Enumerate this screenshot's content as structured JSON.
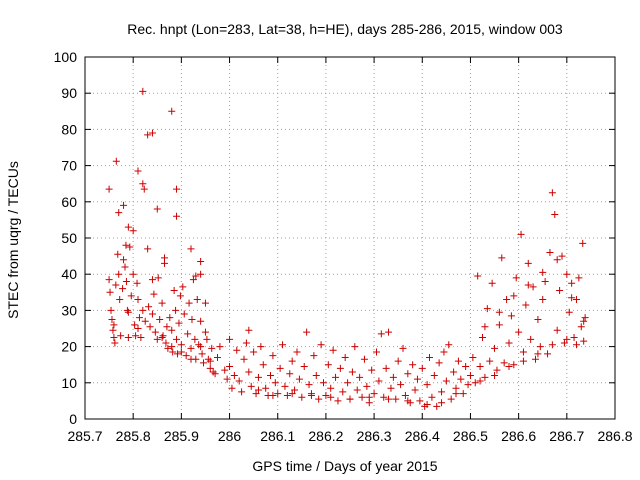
{
  "chart_data": {
    "type": "scatter",
    "title": "Rec. hnpt (Lon=283, Lat=38, h=HE), days 285-286, 2015, window 003",
    "xlabel": "GPS time / Days of year 2015",
    "ylabel": "STEC from uqrg / TECUs",
    "xlim": [
      285.7,
      286.8
    ],
    "ylim": [
      0,
      100
    ],
    "xticks": [
      "285.7",
      "285.8",
      "285.9",
      "286",
      "286.1",
      "286.2",
      "286.3",
      "286.4",
      "286.5",
      "286.6",
      "286.7",
      "286.8"
    ],
    "xtick_values": [
      285.7,
      285.8,
      285.9,
      286.0,
      286.1,
      286.2,
      286.3,
      286.4,
      286.5,
      286.6,
      286.7,
      286.8
    ],
    "yticks": [
      "0",
      "10",
      "20",
      "30",
      "40",
      "50",
      "60",
      "70",
      "80",
      "90",
      "100"
    ],
    "ytick_values": [
      0,
      10,
      20,
      30,
      40,
      50,
      60,
      70,
      80,
      90,
      100
    ],
    "grid": true,
    "marker": "+",
    "marker_color": "#cc0000",
    "series": [
      {
        "points": [
          [
            285.75,
            63.5
          ],
          [
            285.765,
            71.2
          ],
          [
            285.77,
            57.0
          ],
          [
            285.78,
            59.0
          ],
          [
            285.785,
            48.0
          ],
          [
            285.79,
            53.0
          ],
          [
            285.8,
            52.0
          ],
          [
            285.81,
            68.5
          ],
          [
            285.82,
            90.5
          ],
          [
            285.82,
            65.0
          ],
          [
            285.823,
            63.5
          ],
          [
            285.83,
            78.5
          ],
          [
            285.84,
            79.0
          ],
          [
            285.85,
            58.0
          ],
          [
            285.865,
            44.5
          ],
          [
            285.865,
            43.0
          ],
          [
            285.88,
            85.0
          ],
          [
            285.89,
            63.5
          ],
          [
            285.89,
            56.0
          ],
          [
            285.92,
            47.0
          ],
          [
            285.94,
            43.5
          ],
          [
            285.93,
            39.5
          ],
          [
            285.94,
            40.0
          ],
          [
            285.95,
            32.0
          ],
          [
            285.75,
            38.5
          ],
          [
            285.752,
            35.0
          ],
          [
            285.754,
            30.0
          ],
          [
            285.756,
            27.5
          ],
          [
            285.758,
            24.5
          ],
          [
            285.76,
            22.5
          ],
          [
            285.762,
            21.0
          ],
          [
            285.764,
            37.0
          ],
          [
            285.768,
            45.5
          ],
          [
            285.77,
            40.0
          ],
          [
            285.772,
            33.0
          ],
          [
            285.774,
            23.0
          ],
          [
            285.778,
            36.0
          ],
          [
            285.78,
            44.0
          ],
          [
            285.783,
            42.0
          ],
          [
            285.786,
            38.0
          ],
          [
            285.788,
            30.0
          ],
          [
            285.79,
            22.5
          ],
          [
            285.793,
            47.5
          ],
          [
            285.796,
            34.0
          ],
          [
            285.8,
            40.0
          ],
          [
            285.803,
            26.0
          ],
          [
            285.805,
            23.0
          ],
          [
            285.808,
            37.5
          ],
          [
            285.81,
            33.0
          ],
          [
            285.813,
            28.0
          ],
          [
            285.816,
            22.5
          ],
          [
            285.82,
            30.0
          ],
          [
            285.825,
            27.0
          ],
          [
            285.83,
            47.0
          ],
          [
            285.832,
            31.0
          ],
          [
            285.835,
            25.5
          ],
          [
            285.84,
            38.5
          ],
          [
            285.843,
            34.5
          ],
          [
            285.846,
            24.0
          ],
          [
            285.85,
            22.0
          ],
          [
            285.852,
            39.0
          ],
          [
            285.855,
            27.5
          ],
          [
            285.86,
            32.0
          ],
          [
            285.862,
            23.0
          ],
          [
            285.868,
            21.0
          ],
          [
            285.87,
            25.5
          ],
          [
            285.872,
            19.5
          ],
          [
            285.876,
            28.0
          ],
          [
            285.88,
            24.5
          ],
          [
            285.882,
            18.5
          ],
          [
            285.885,
            35.5
          ],
          [
            285.888,
            30.0
          ],
          [
            285.89,
            22.0
          ],
          [
            285.892,
            18.0
          ],
          [
            285.895,
            26.5
          ],
          [
            285.898,
            34.0
          ],
          [
            285.9,
            20.5
          ],
          [
            285.903,
            36.5
          ],
          [
            285.906,
            29.0
          ],
          [
            285.91,
            17.5
          ],
          [
            285.913,
            23.5
          ],
          [
            285.916,
            32.0
          ],
          [
            285.92,
            19.5
          ],
          [
            285.922,
            27.5
          ],
          [
            285.925,
            38.5
          ],
          [
            285.928,
            22.0
          ],
          [
            285.93,
            16.5
          ],
          [
            285.933,
            33.0
          ],
          [
            285.936,
            20.5
          ],
          [
            285.94,
            27.0
          ],
          [
            285.943,
            18.0
          ],
          [
            285.946,
            15.5
          ],
          [
            285.95,
            24.0
          ],
          [
            285.953,
            22.0
          ],
          [
            285.956,
            16.5
          ],
          [
            285.96,
            14.0
          ],
          [
            285.963,
            19.5
          ],
          [
            285.966,
            13.0
          ],
          [
            285.97,
            12.5
          ],
          [
            285.975,
            17.0
          ],
          [
            285.98,
            20.0
          ],
          [
            285.76,
            26.0
          ],
          [
            285.79,
            29.5
          ],
          [
            285.81,
            25.0
          ],
          [
            285.84,
            29.0
          ],
          [
            285.86,
            22.5
          ],
          [
            285.88,
            20.0
          ],
          [
            285.9,
            18.5
          ],
          [
            285.92,
            16.5
          ],
          [
            285.94,
            20.0
          ],
          [
            285.96,
            16.0
          ],
          [
            285.99,
            13.5
          ],
          [
            285.995,
            11.0
          ],
          [
            286.0,
            22.0
          ],
          [
            286.0,
            14.5
          ],
          [
            286.005,
            8.5
          ],
          [
            286.01,
            12.0
          ],
          [
            286.015,
            19.0
          ],
          [
            286.02,
            10.5
          ],
          [
            286.025,
            7.5
          ],
          [
            286.03,
            16.5
          ],
          [
            286.035,
            21.0
          ],
          [
            286.04,
            24.5
          ],
          [
            286.04,
            13.0
          ],
          [
            286.045,
            9.0
          ],
          [
            286.05,
            18.5
          ],
          [
            286.055,
            7.0
          ],
          [
            286.06,
            11.5
          ],
          [
            286.065,
            20.0
          ],
          [
            286.07,
            15.0
          ],
          [
            286.075,
            8.5
          ],
          [
            286.08,
            6.5
          ],
          [
            286.085,
            12.0
          ],
          [
            286.09,
            17.5
          ],
          [
            286.095,
            10.0
          ],
          [
            286.1,
            7.0
          ],
          [
            286.105,
            14.0
          ],
          [
            286.11,
            20.5
          ],
          [
            286.115,
            9.0
          ],
          [
            286.12,
            6.5
          ],
          [
            286.125,
            12.5
          ],
          [
            286.13,
            16.0
          ],
          [
            286.135,
            8.0
          ],
          [
            286.14,
            18.5
          ],
          [
            286.145,
            11.0
          ],
          [
            286.15,
            6.0
          ],
          [
            286.155,
            14.5
          ],
          [
            286.16,
            24.0
          ],
          [
            286.165,
            9.5
          ],
          [
            286.17,
            7.0
          ],
          [
            286.175,
            17.5
          ],
          [
            286.18,
            12.0
          ],
          [
            286.185,
            5.5
          ],
          [
            286.19,
            20.5
          ],
          [
            286.195,
            10.0
          ],
          [
            286.2,
            6.5
          ],
          [
            286.205,
            15.0
          ],
          [
            286.21,
            8.5
          ],
          [
            286.215,
            19.0
          ],
          [
            286.22,
            11.5
          ],
          [
            286.225,
            5.0
          ],
          [
            286.23,
            14.0
          ],
          [
            286.235,
            7.5
          ],
          [
            286.24,
            17.0
          ],
          [
            286.245,
            10.0
          ],
          [
            286.25,
            5.5
          ],
          [
            286.255,
            13.0
          ],
          [
            286.26,
            20.0
          ],
          [
            286.265,
            8.0
          ],
          [
            286.27,
            11.5
          ],
          [
            286.275,
            6.0
          ],
          [
            286.28,
            16.5
          ],
          [
            286.285,
            9.0
          ],
          [
            286.29,
            4.5
          ],
          [
            286.295,
            13.5
          ],
          [
            286.3,
            7.0
          ],
          [
            286.305,
            18.5
          ],
          [
            286.31,
            10.5
          ],
          [
            286.315,
            23.5
          ],
          [
            286.32,
            6.0
          ],
          [
            286.325,
            14.0
          ],
          [
            286.33,
            24.0
          ],
          [
            286.335,
            8.5
          ],
          [
            286.34,
            11.5
          ],
          [
            286.345,
            5.5
          ],
          [
            286.35,
            16.0
          ],
          [
            286.355,
            9.5
          ],
          [
            286.36,
            19.5
          ],
          [
            286.365,
            6.5
          ],
          [
            286.37,
            12.5
          ],
          [
            286.375,
            4.5
          ],
          [
            286.38,
            15.0
          ],
          [
            286.385,
            8.0
          ],
          [
            286.39,
            11.0
          ],
          [
            286.395,
            5.0
          ],
          [
            286.4,
            14.0
          ],
          [
            286.405,
            3.5
          ],
          [
            286.41,
            9.5
          ],
          [
            286.415,
            17.0
          ],
          [
            286.42,
            6.0
          ],
          [
            286.425,
            12.0
          ],
          [
            286.43,
            3.5
          ],
          [
            286.435,
            15.5
          ],
          [
            286.44,
            7.5
          ],
          [
            286.445,
            18.5
          ],
          [
            286.45,
            10.5
          ],
          [
            286.455,
            20.5
          ],
          [
            286.46,
            5.5
          ],
          [
            286.465,
            13.0
          ],
          [
            286.47,
            8.5
          ],
          [
            286.475,
            16.0
          ],
          [
            286.48,
            11.0
          ],
          [
            286.485,
            7.0
          ],
          [
            286.49,
            14.5
          ],
          [
            286.495,
            9.5
          ],
          [
            286.06,
            8.0
          ],
          [
            286.09,
            6.5
          ],
          [
            286.13,
            7.0
          ],
          [
            286.17,
            6.5
          ],
          [
            286.21,
            6.0
          ],
          [
            286.25,
            5.5
          ],
          [
            286.29,
            6.0
          ],
          [
            286.33,
            5.5
          ],
          [
            286.37,
            5.0
          ],
          [
            286.41,
            4.0
          ],
          [
            286.44,
            4.5
          ],
          [
            286.47,
            7.0
          ],
          [
            286.5,
            12.0
          ],
          [
            286.505,
            17.0
          ],
          [
            286.51,
            10.0
          ],
          [
            286.515,
            39.5
          ],
          [
            286.52,
            14.5
          ],
          [
            286.525,
            22.5
          ],
          [
            286.53,
            11.5
          ],
          [
            286.535,
            30.5
          ],
          [
            286.54,
            16.0
          ],
          [
            286.545,
            37.5
          ],
          [
            286.55,
            19.5
          ],
          [
            286.555,
            13.5
          ],
          [
            286.56,
            26.0
          ],
          [
            286.565,
            44.5
          ],
          [
            286.57,
            15.5
          ],
          [
            286.575,
            33.0
          ],
          [
            286.58,
            21.0
          ],
          [
            286.585,
            28.5
          ],
          [
            286.59,
            15.0
          ],
          [
            286.595,
            39.0
          ],
          [
            286.6,
            24.0
          ],
          [
            286.605,
            51.0
          ],
          [
            286.61,
            18.5
          ],
          [
            286.615,
            31.5
          ],
          [
            286.62,
            43.0
          ],
          [
            286.625,
            22.0
          ],
          [
            286.63,
            36.5
          ],
          [
            286.635,
            16.5
          ],
          [
            286.64,
            27.5
          ],
          [
            286.645,
            20.0
          ],
          [
            286.65,
            33.0
          ],
          [
            286.655,
            38.0
          ],
          [
            286.66,
            18.0
          ],
          [
            286.665,
            46.0
          ],
          [
            286.67,
            62.5
          ],
          [
            286.675,
            56.5
          ],
          [
            286.68,
            24.5
          ],
          [
            286.685,
            35.5
          ],
          [
            286.69,
            45.0
          ],
          [
            286.695,
            21.0
          ],
          [
            286.7,
            40.0
          ],
          [
            286.705,
            29.5
          ],
          [
            286.71,
            37.5
          ],
          [
            286.715,
            22.5
          ],
          [
            286.72,
            33.0
          ],
          [
            286.725,
            39.0
          ],
          [
            286.73,
            25.5
          ],
          [
            286.733,
            48.5
          ],
          [
            286.735,
            21.5
          ],
          [
            286.738,
            28.0
          ],
          [
            286.52,
            10.5
          ],
          [
            286.55,
            12.0
          ],
          [
            286.58,
            14.5
          ],
          [
            286.61,
            16.0
          ],
          [
            286.64,
            18.0
          ],
          [
            286.67,
            20.5
          ],
          [
            286.7,
            22.0
          ],
          [
            286.72,
            20.5
          ],
          [
            286.53,
            25.5
          ],
          [
            286.56,
            29.5
          ],
          [
            286.59,
            34.0
          ],
          [
            286.62,
            37.0
          ],
          [
            286.65,
            40.5
          ],
          [
            286.68,
            44.0
          ],
          [
            286.71,
            33.5
          ],
          [
            286.735,
            27.0
          ]
        ]
      }
    ]
  }
}
